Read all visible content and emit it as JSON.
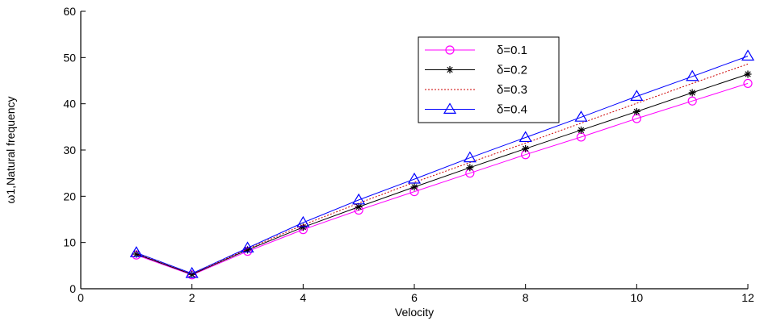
{
  "chart_data": {
    "type": "line",
    "title": "",
    "xlabel": "Velocity",
    "ylabel": "ω1,Natural frequency",
    "xlim": [
      0,
      12
    ],
    "ylim": [
      0,
      60
    ],
    "xticks": [
      0,
      2,
      4,
      6,
      8,
      10,
      12
    ],
    "yticks": [
      0,
      10,
      20,
      30,
      40,
      50,
      60
    ],
    "grid": false,
    "legend_position": "top-right",
    "x": [
      1,
      2,
      3,
      4,
      5,
      6,
      7,
      8,
      9,
      10,
      11,
      12
    ],
    "series": [
      {
        "name": "δ=0.1",
        "color": "#ff00ff",
        "marker": "circle",
        "line": "solid",
        "values": [
          7.3,
          3.0,
          8.1,
          12.8,
          17.0,
          21.0,
          25.0,
          29.0,
          32.8,
          36.8,
          40.6,
          44.4
        ]
      },
      {
        "name": "δ=0.2",
        "color": "#000000",
        "marker": "asterisk",
        "line": "solid",
        "values": [
          7.5,
          3.1,
          8.4,
          13.3,
          17.7,
          22.0,
          26.2,
          30.3,
          34.3,
          38.3,
          42.4,
          46.4
        ]
      },
      {
        "name": "δ=0.3",
        "color": "#cc0000",
        "marker": "none",
        "line": "dotted",
        "values": [
          7.7,
          3.2,
          8.6,
          13.8,
          18.5,
          23.0,
          27.3,
          31.5,
          35.8,
          40.1,
          44.4,
          48.6
        ]
      },
      {
        "name": "δ=0.4",
        "color": "#0000ff",
        "marker": "triangle",
        "line": "solid",
        "values": [
          7.8,
          3.3,
          8.8,
          14.3,
          19.2,
          23.7,
          28.3,
          32.7,
          37.1,
          41.6,
          45.9,
          50.3
        ]
      }
    ]
  }
}
